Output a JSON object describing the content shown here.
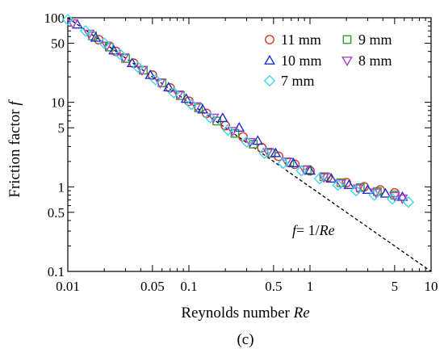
{
  "chart_data": {
    "type": "scatter",
    "xlabel": "Reynolds number",
    "xlabel_symbol": "Re",
    "ylabel": "Friction factor",
    "ylabel_symbol": "f",
    "panel_label": "(c)",
    "x_scale": "log",
    "y_scale": "log",
    "xlim": [
      0.01,
      10
    ],
    "ylim": [
      0.1,
      100
    ],
    "x_ticks": [
      {
        "value": 0.01,
        "label": "0.01"
      },
      {
        "value": 0.05,
        "label": "0.05"
      },
      {
        "value": 0.1,
        "label": "0.1"
      },
      {
        "value": 0.5,
        "label": "0.5"
      },
      {
        "value": 1,
        "label": "1"
      },
      {
        "value": 5,
        "label": "5"
      },
      {
        "value": 10,
        "label": "10"
      }
    ],
    "y_ticks": [
      {
        "value": 0.1,
        "label": "0.1"
      },
      {
        "value": 0.5,
        "label": "0.5"
      },
      {
        "value": 1,
        "label": "1"
      },
      {
        "value": 5,
        "label": "5"
      },
      {
        "value": 10,
        "label": "10"
      },
      {
        "value": 50,
        "label": "50"
      },
      {
        "value": 100,
        "label": "100"
      }
    ],
    "grid": false,
    "legend_position": "top-right",
    "series": [
      {
        "name": "11 mm",
        "marker": "circle",
        "color": "#d9342b",
        "x": [
          0.018,
          0.025,
          0.035,
          0.05,
          0.07,
          0.1,
          0.14,
          0.2,
          0.28,
          0.4,
          0.55,
          0.75,
          1.0,
          1.4,
          2.0,
          2.8,
          3.8,
          5.0
        ],
        "y": [
          55,
          40,
          29,
          21,
          14.8,
          10.3,
          7.4,
          5.3,
          3.9,
          2.9,
          2.3,
          1.85,
          1.55,
          1.3,
          1.12,
          1.0,
          0.92,
          0.85
        ]
      },
      {
        "name": "9 mm",
        "marker": "square",
        "color": "#2ca02c",
        "x": [
          0.016,
          0.022,
          0.03,
          0.042,
          0.06,
          0.085,
          0.12,
          0.17,
          0.24,
          0.34,
          0.48,
          0.68,
          0.95,
          1.3,
          1.8,
          2.6,
          3.6,
          5.0
        ],
        "y": [
          61,
          45,
          33,
          24,
          17,
          12,
          8.6,
          6.0,
          4.3,
          3.2,
          2.5,
          1.95,
          1.6,
          1.32,
          1.12,
          0.98,
          0.88,
          0.8
        ]
      },
      {
        "name": "10 mm",
        "marker": "triangle-up",
        "color": "#1f2fd0",
        "x": [
          0.012,
          0.017,
          0.024,
          0.034,
          0.048,
          0.068,
          0.095,
          0.13,
          0.19,
          0.26,
          0.37,
          0.52,
          0.73,
          1.0,
          1.5,
          2.1,
          3.0,
          4.2,
          5.8
        ],
        "y": [
          83,
          58,
          41,
          29,
          21,
          15,
          11,
          8.2,
          6.5,
          5.0,
          3.5,
          2.5,
          1.9,
          1.55,
          1.25,
          1.05,
          0.92,
          0.83,
          0.76
        ]
      },
      {
        "name": "8 mm",
        "marker": "triangle-down",
        "color": "#b03ad0",
        "x": [
          0.011,
          0.015,
          0.021,
          0.029,
          0.041,
          0.058,
          0.082,
          0.115,
          0.16,
          0.23,
          0.32,
          0.45,
          0.64,
          0.9,
          1.3,
          1.8,
          2.5,
          3.5,
          5.0,
          5.8
        ],
        "y": [
          86,
          65,
          47,
          34,
          24,
          17,
          12.4,
          9.0,
          6.6,
          4.6,
          3.4,
          2.6,
          2.0,
          1.6,
          1.3,
          1.1,
          0.96,
          0.86,
          0.78,
          0.73
        ]
      },
      {
        "name": "7 mm",
        "marker": "diamond",
        "color": "#3fd6e6",
        "x": [
          0.01,
          0.014,
          0.02,
          0.027,
          0.038,
          0.053,
          0.075,
          0.105,
          0.15,
          0.21,
          0.3,
          0.42,
          0.6,
          0.85,
          1.2,
          1.7,
          2.4,
          3.4,
          4.8,
          6.5
        ],
        "y": [
          95,
          70,
          50,
          37,
          26,
          18.5,
          13,
          9.4,
          6.6,
          4.7,
          3.4,
          2.5,
          1.9,
          1.55,
          1.25,
          1.05,
          0.9,
          0.8,
          0.72,
          0.66
        ]
      }
    ],
    "reference_line": {
      "label_lhs": "f",
      "label_rhs": "= 1/",
      "label_var": "Re",
      "x": [
        0.01,
        10
      ],
      "y": [
        100,
        0.1
      ]
    },
    "legend_layout": [
      [
        "11 mm",
        "9 mm"
      ],
      [
        "10 mm",
        "8 mm"
      ],
      [
        "7 mm"
      ]
    ]
  }
}
